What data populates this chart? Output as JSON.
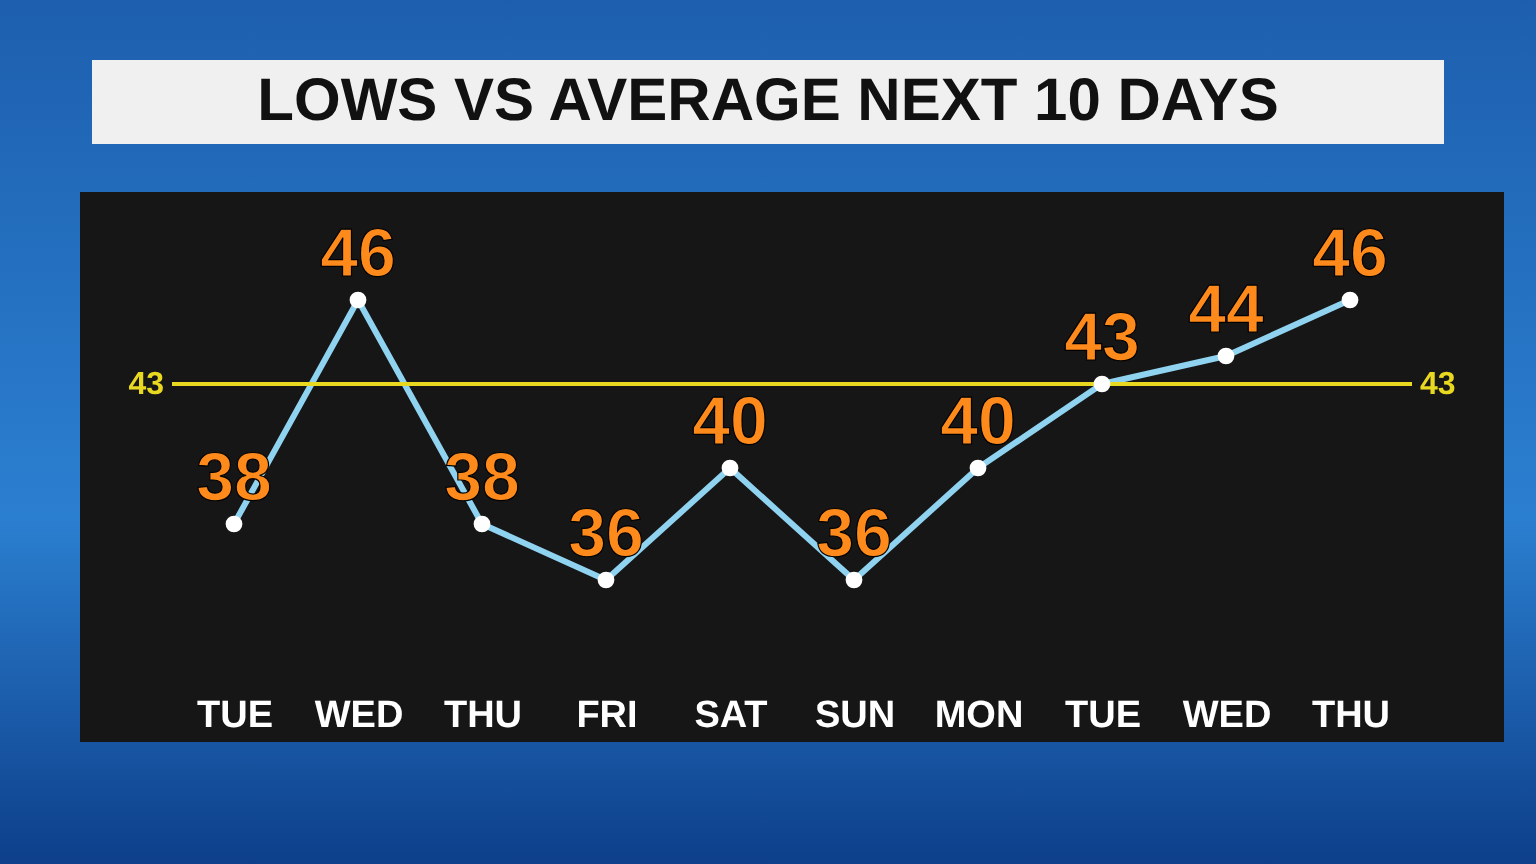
{
  "chart_data": {
    "type": "line",
    "title": "LOWS VS AVERAGE NEXT 10 DAYS",
    "categories": [
      "TUE",
      "WED",
      "THU",
      "FRI",
      "SAT",
      "SUN",
      "MON",
      "TUE",
      "WED",
      "THU"
    ],
    "values": [
      38,
      46,
      38,
      36,
      40,
      36,
      40,
      43,
      44,
      46
    ],
    "color": "#8fd3f0",
    "ref_lines": [
      {
        "axis": "y",
        "value": 43,
        "label": "43",
        "color": "#e8d820"
      }
    ],
    "data_labels": true,
    "tick_labels": "x",
    "marker": "circle",
    "line_style": "solid"
  }
}
